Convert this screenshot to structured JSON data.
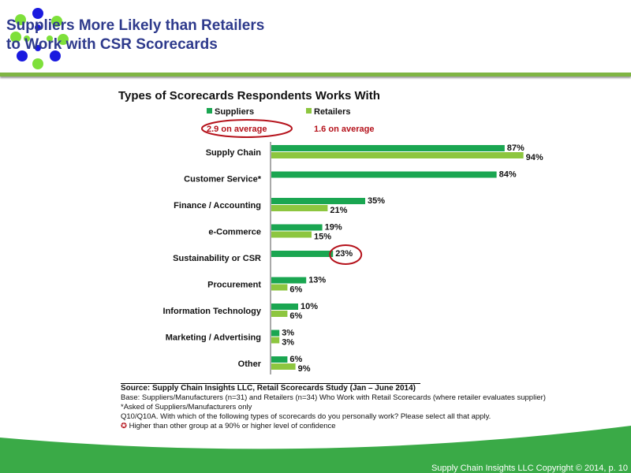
{
  "header": {
    "title_line1": "Suppliers More Likely than Retailers",
    "title_line2": "to Work with CSR Scorecards"
  },
  "colors": {
    "suppliers": "#1aa651",
    "retailers": "#8dc63f",
    "title": "#2e3a8c",
    "highlight": "#b5121b",
    "band": "#3aaa47"
  },
  "chart_data": {
    "type": "bar",
    "orientation": "horizontal",
    "title": "Types of Scorecards Respondents Works With",
    "categories": [
      "Supply Chain",
      "Customer Service*",
      "Finance / Accounting",
      "e-Commerce",
      "Sustainability or CSR",
      "Procurement",
      "Information Technology",
      "Marketing / Advertising",
      "Other"
    ],
    "series": [
      {
        "name": "Suppliers",
        "values": [
          87,
          84,
          35,
          19,
          23,
          13,
          10,
          3,
          6
        ],
        "average": "2.9 on average"
      },
      {
        "name": "Retailers",
        "values": [
          94,
          null,
          21,
          15,
          null,
          6,
          6,
          3,
          9
        ],
        "average": "1.6 on average"
      }
    ],
    "xlim": [
      0,
      100
    ],
    "legend": "top-left",
    "grid": false,
    "highlighted": [
      "2.9 on average",
      "Sustainability or CSR: Suppliers 23%"
    ]
  },
  "footer": {
    "source": "Source:  Supply Chain Insights LLC, Retail Scorecards Study (Jan – June 2014)",
    "base": "Base: Suppliers/Manufacturers (n=31) and Retailers (n=34) Who Work with Retail Scorecards (where retailer evaluates supplier)",
    "note": "*Asked of Suppliers/Manufacturers only",
    "question": "Q10/Q10A. With which of the following types of scorecards do you personally work? Please select all that apply.",
    "legend_note": "Higher than other group at a 90% or higher level of confidence",
    "copyright": "Supply Chain Insights LLC Copyright © 2014, p. 10"
  }
}
